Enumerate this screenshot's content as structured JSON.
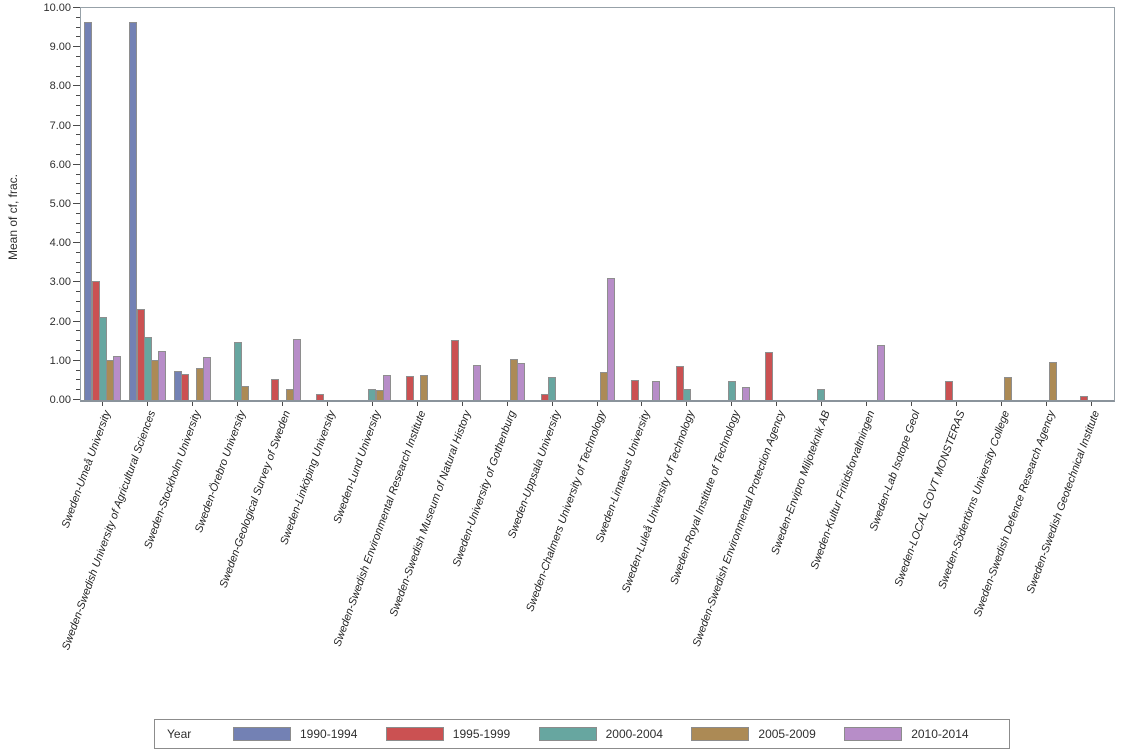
{
  "chart_data": {
    "type": "bar",
    "title": "",
    "xlabel": "",
    "ylabel": "Mean of cf, frac.",
    "ylim": [
      0,
      10
    ],
    "y_major_tick": 1.0,
    "y_minor_tick": 0.25,
    "y_tick_labels": [
      "0.00",
      "1.00",
      "2.00",
      "3.00",
      "4.00",
      "5.00",
      "6.00",
      "7.00",
      "8.00",
      "9.00",
      "10.00"
    ],
    "grid": false,
    "legend_position": "bottom",
    "legend_title": "Year",
    "categories": [
      "Sweden-Umeå University",
      "Sweden-Swedish University of Agricultural Sciences",
      "Sweden-Stockholm University",
      "Sweden-Örebro University",
      "Sweden-Geological Survey of Sweden",
      "Sweden-Linköping University",
      "Sweden-Lund University",
      "Sweden-Swedish Environmental Research Institute",
      "Sweden-Swedish Museum of Natural History",
      "Sweden-University of Gothenburg",
      "Sweden-Uppsala University",
      "Sweden-Chalmers University of Technology",
      "Sweden-Linnaeus University",
      "Sweden-Luleå University of Technology",
      "Sweden-Royal Institute of Technology",
      "Sweden-Swedish Environmental Protection Agency",
      "Sweden-Envipro Miljoteknik AB",
      "Sweden-Kultur Fritidsforvaltningen",
      "Sweden-Lab Isotope Geol",
      "Sweden-LOCAL GOVT MONSTERAS",
      "Sweden-Södertörns University College",
      "Sweden-Swedish Defence Research Agency",
      "Sweden-Swedish Geotechnical Institute"
    ],
    "series": [
      {
        "name": "1990-1994",
        "color": "#7381B4",
        "values": [
          9.63,
          9.63,
          0.72,
          0,
          0,
          0,
          0,
          0,
          0,
          0,
          0,
          0,
          0,
          0,
          0,
          0,
          0,
          0,
          0,
          0,
          0,
          0,
          0
        ]
      },
      {
        "name": "1995-1999",
        "color": "#CB5152",
        "values": [
          3.0,
          2.3,
          0.65,
          0,
          0.5,
          0.14,
          0,
          0.58,
          1.5,
          0,
          0.14,
          0,
          0.48,
          0.85,
          0,
          1.19,
          0,
          0,
          0,
          0.47,
          0,
          0,
          0.07
        ]
      },
      {
        "name": "2000-2004",
        "color": "#67A6A0",
        "values": [
          2.1,
          1.58,
          0,
          1.45,
          0,
          0,
          0.26,
          0,
          0,
          0,
          0.57,
          0,
          0,
          0.26,
          0.45,
          0,
          0.25,
          0,
          0,
          0,
          0,
          0,
          0
        ]
      },
      {
        "name": "2005-2009",
        "color": "#AC8A55",
        "values": [
          1.0,
          1.0,
          0.78,
          0.32,
          0.25,
          0,
          0.24,
          0.61,
          0,
          1.03,
          0,
          0.7,
          0,
          0,
          0,
          0,
          0,
          0,
          0,
          0,
          0.57,
          0.95,
          0
        ]
      },
      {
        "name": "2010-2014",
        "color": "#B78DC8",
        "values": [
          1.1,
          1.22,
          1.08,
          0,
          1.54,
          0,
          0.62,
          0,
          0.88,
          0.91,
          0,
          3.08,
          0.45,
          0,
          0.3,
          0,
          0,
          1.39,
          0,
          0,
          0,
          0,
          0
        ]
      }
    ],
    "bar_border_color": "#8E8E8E",
    "axis_frame_color": "#97A1A8",
    "tick_color": "#4A4A4A",
    "text_color": "#2F2F2F"
  }
}
